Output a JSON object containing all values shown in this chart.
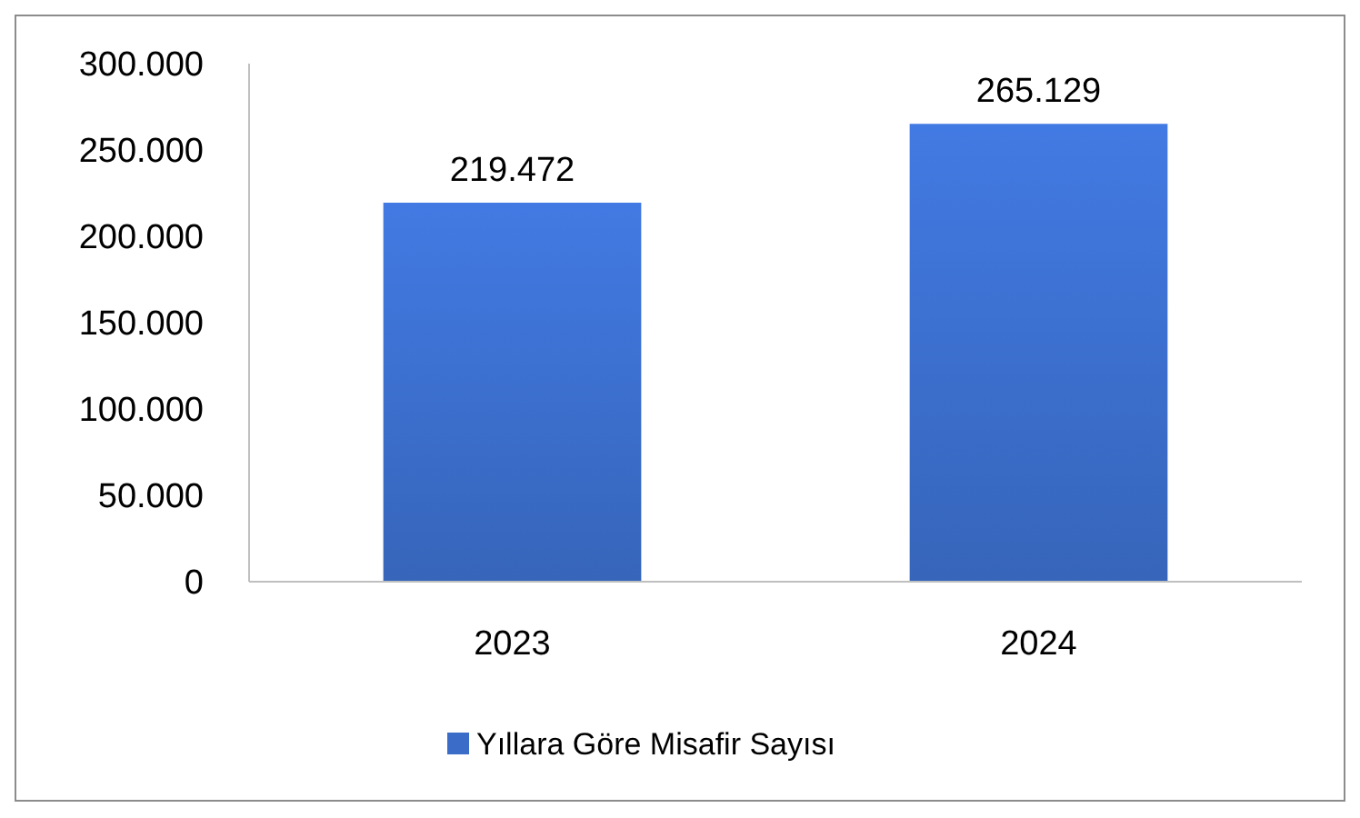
{
  "chart_data": {
    "type": "bar",
    "categories": [
      "2023",
      "2024"
    ],
    "series": [
      {
        "name": "Yıllara Göre Misafir Sayısı",
        "color": "#3a6cc8",
        "values": [
          219472,
          265129
        ],
        "value_labels": [
          "219.472",
          "265.129"
        ]
      }
    ],
    "ylim": [
      0,
      300000
    ],
    "yticks": [
      {
        "value": 0,
        "label": "0"
      },
      {
        "value": 50000,
        "label": "50.000"
      },
      {
        "value": 100000,
        "label": "100.000"
      },
      {
        "value": 150000,
        "label": "150.000"
      },
      {
        "value": 200000,
        "label": "200.000"
      },
      {
        "value": 250000,
        "label": "250.000"
      },
      {
        "value": 300000,
        "label": "300.000"
      }
    ],
    "grid": false,
    "legend": "bottom"
  }
}
